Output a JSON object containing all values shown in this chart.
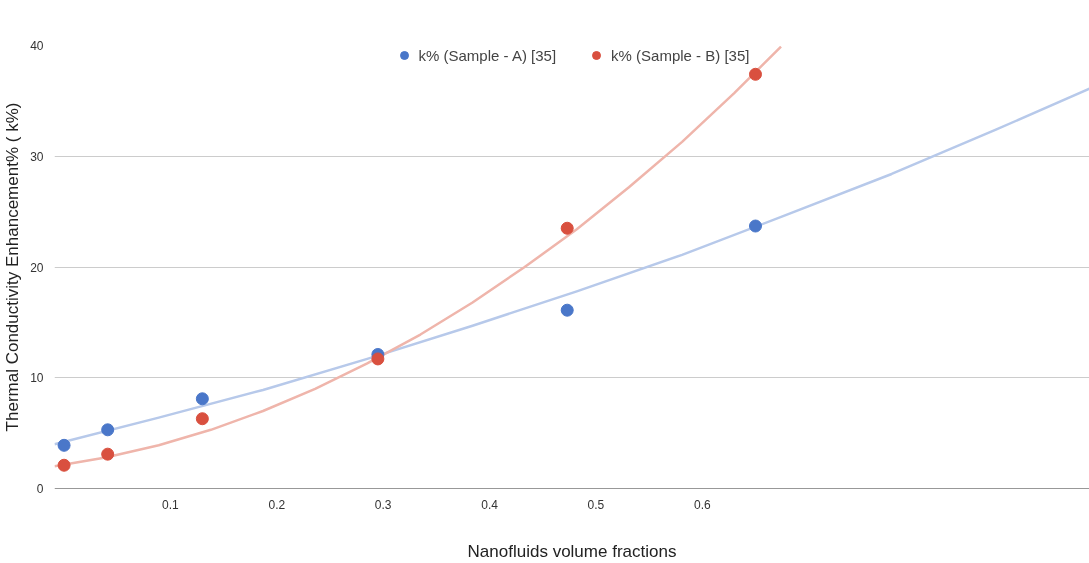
{
  "chart_data": {
    "type": "scatter",
    "xlabel": "Nanofluids volume fractions",
    "ylabel": "Thermal Conductivity Enhancement% ( k%)",
    "xlim": [
      -0.009,
      0.964
    ],
    "xticks": [
      0.1,
      0.2,
      0.3,
      0.4,
      0.5,
      0.6
    ],
    "ylim": [
      0,
      40
    ],
    "yticks": [
      0,
      10,
      20,
      30,
      40
    ],
    "grid": "y",
    "legend": "top",
    "marker": "circle",
    "series": [
      {
        "type": "line",
        "marker": "none",
        "color": "#b7c9ea",
        "x": [
          -0.009,
          0.089,
          0.187,
          0.285,
          0.384,
          0.482,
          0.581,
          0.679,
          0.778,
          0.876,
          0.964
        ],
        "values": [
          4.0,
          6.4,
          8.9,
          11.7,
          14.7,
          17.8,
          21.1,
          24.7,
          28.4,
          32.4,
          36.1
        ]
      },
      {
        "type": "line",
        "marker": "none",
        "color": "#efb5ab",
        "x": [
          -0.009,
          0.039,
          0.089,
          0.138,
          0.187,
          0.236,
          0.285,
          0.335,
          0.384,
          0.433,
          0.482,
          0.531,
          0.581,
          0.63,
          0.674
        ],
        "values": [
          2.0,
          2.8,
          3.9,
          5.3,
          7.0,
          9.0,
          11.3,
          13.9,
          16.8,
          20.0,
          23.4,
          27.2,
          31.3,
          35.7,
          39.9
        ]
      },
      {
        "name": "k% (Sample - A) [35]",
        "color": "#4a77c9",
        "x": [
          0.0,
          0.041,
          0.13,
          0.295,
          0.473,
          0.65
        ],
        "values": [
          3.9,
          5.3,
          8.1,
          12.1,
          16.1,
          23.7
        ]
      },
      {
        "name": "k% (Sample - B) [35]",
        "color": "#d9503f",
        "x": [
          0.0,
          0.041,
          0.13,
          0.295,
          0.473,
          0.65
        ],
        "values": [
          2.1,
          3.1,
          6.3,
          11.7,
          23.5,
          37.4
        ]
      }
    ]
  }
}
